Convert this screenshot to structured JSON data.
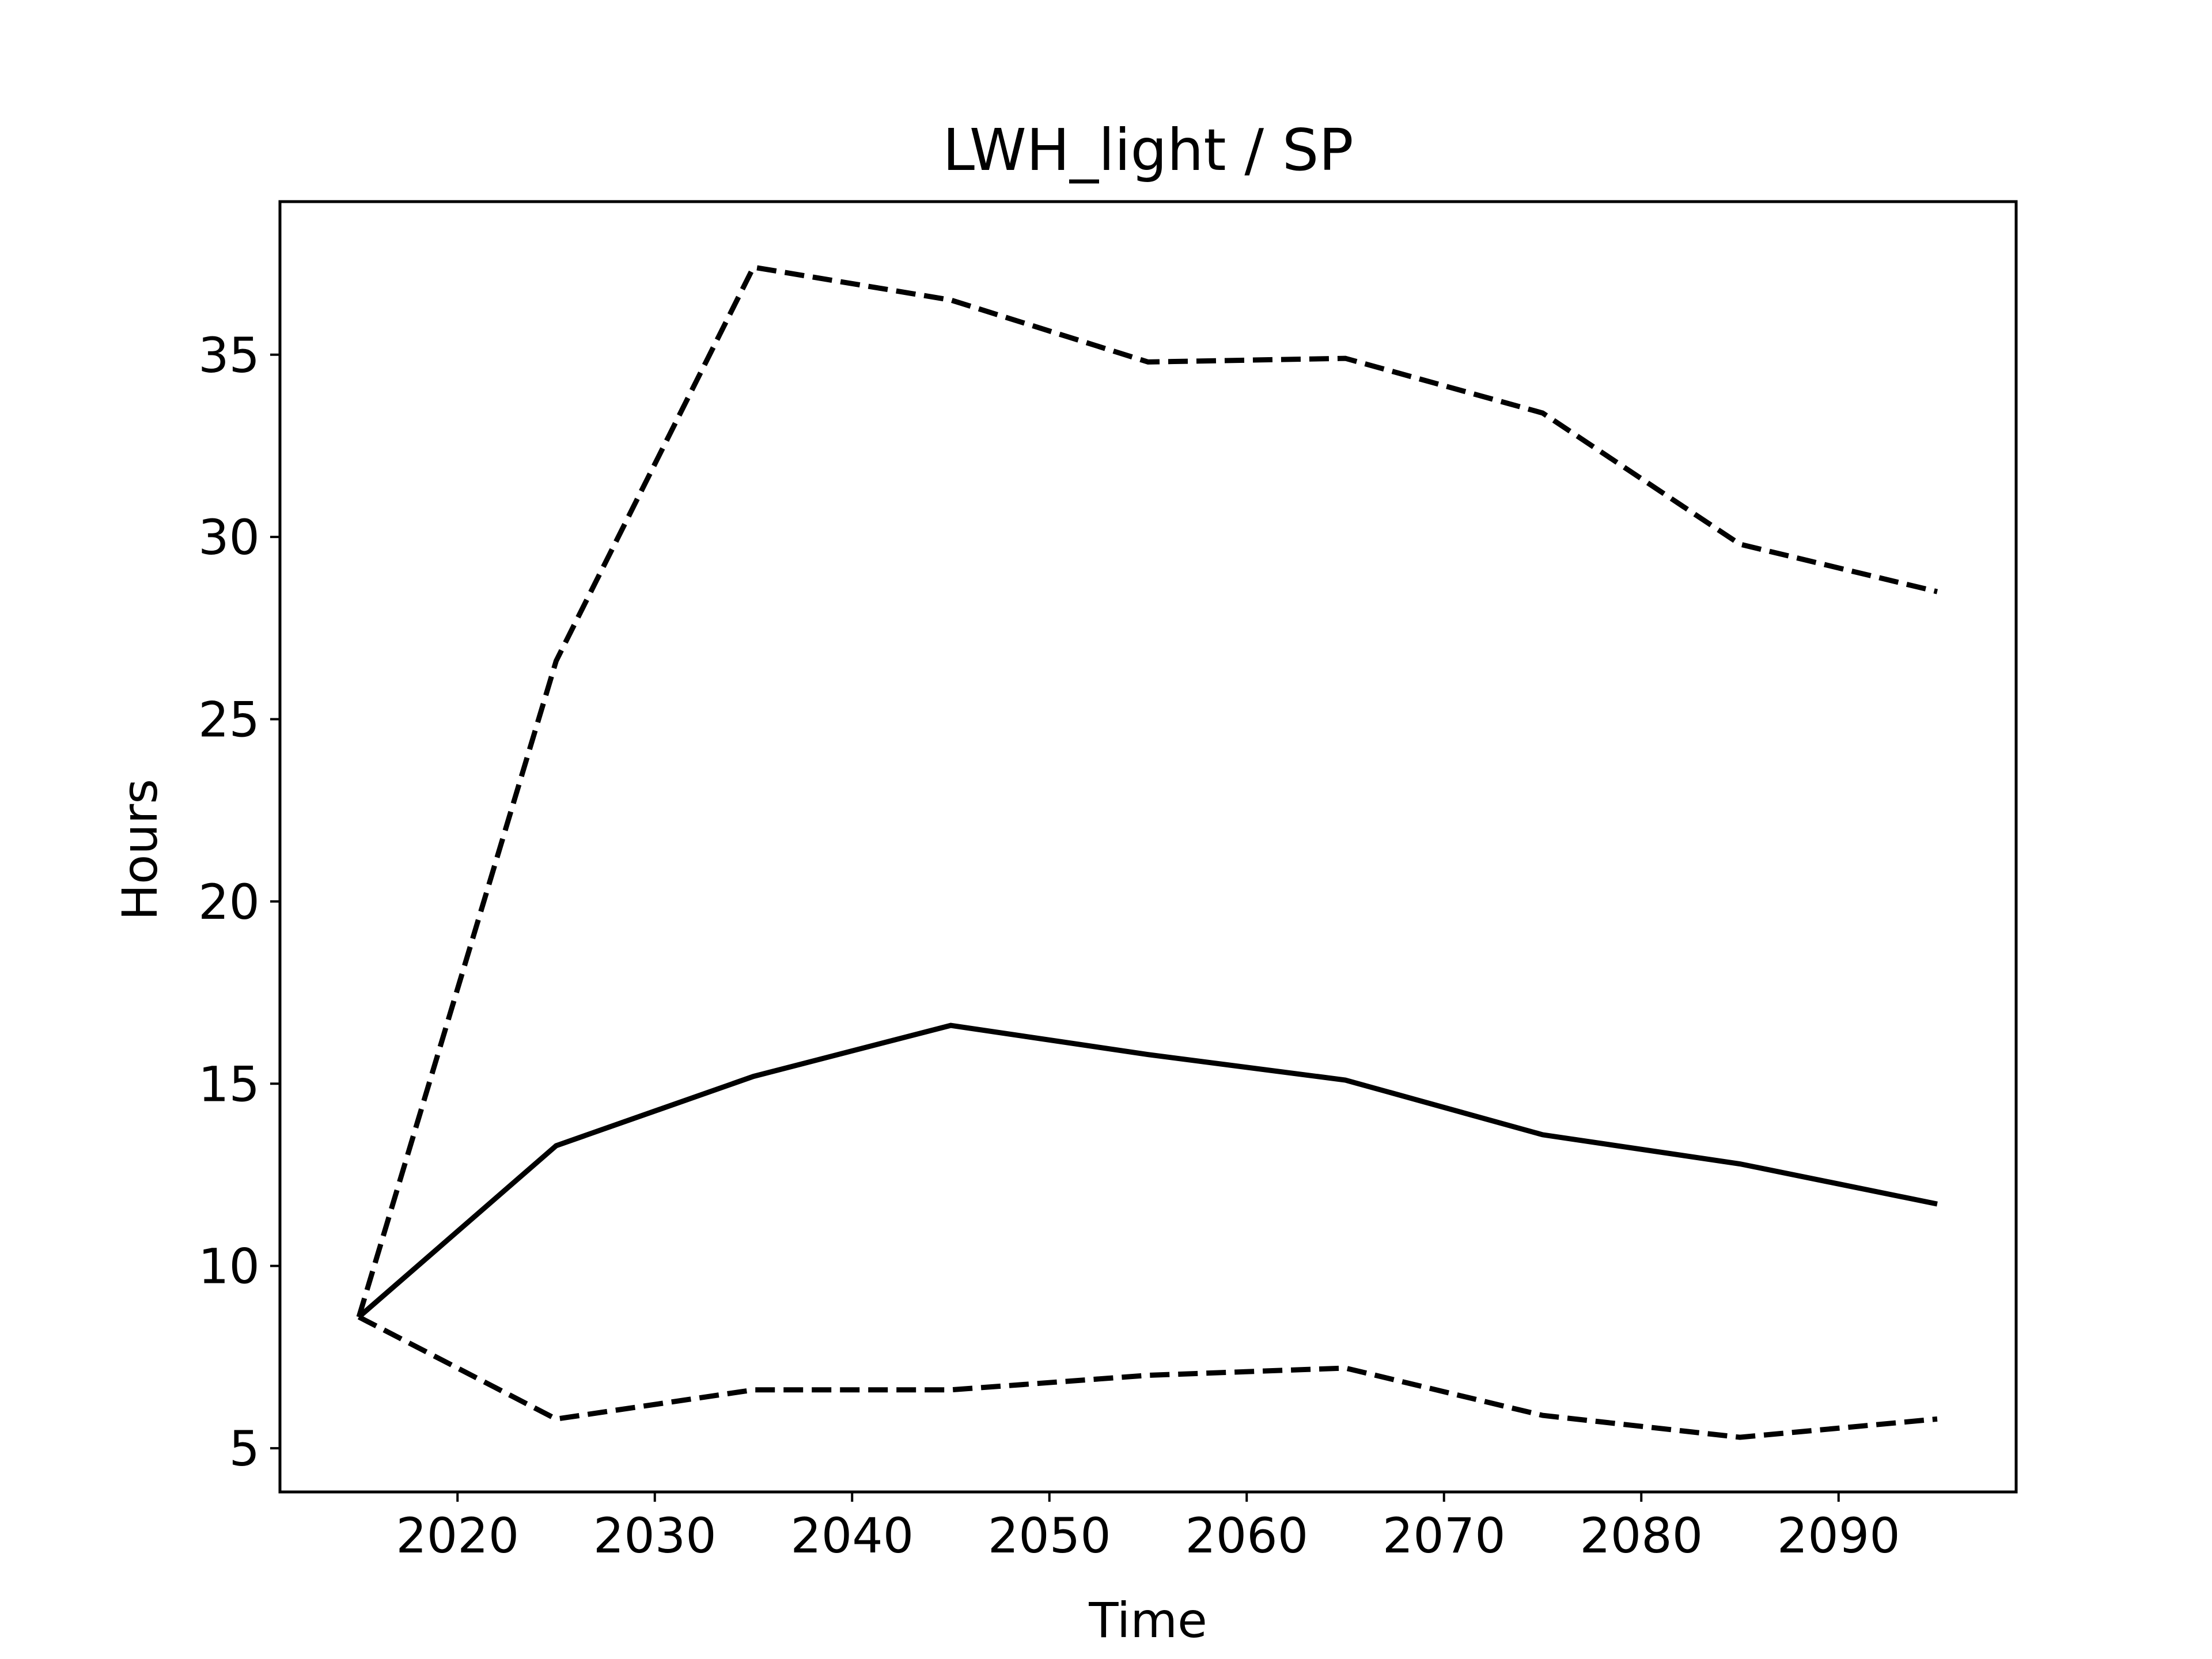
{
  "chart_data": {
    "type": "line",
    "title": "LWH_light / SP",
    "xlabel": "Time",
    "ylabel": "Hours",
    "xlim": [
      2011,
      2099
    ],
    "ylim": [
      3.8,
      39.2
    ],
    "xticks": [
      2020,
      2030,
      2040,
      2050,
      2060,
      2070,
      2080,
      2090
    ],
    "yticks": [
      5,
      10,
      15,
      20,
      25,
      30,
      35
    ],
    "grid": false,
    "legend": "none",
    "x": [
      2015,
      2025,
      2035,
      2045,
      2055,
      2065,
      2075,
      2085,
      2095
    ],
    "series": [
      {
        "style": "dashed",
        "color": "#000000",
        "values": [
          8.6,
          26.6,
          37.4,
          36.5,
          34.8,
          34.9,
          33.4,
          29.8,
          28.5
        ]
      },
      {
        "style": "solid",
        "color": "#000000",
        "values": [
          8.6,
          13.3,
          15.2,
          16.6,
          15.8,
          15.1,
          13.6,
          12.8,
          11.7
        ]
      },
      {
        "style": "dashed",
        "color": "#000000",
        "values": [
          8.6,
          5.8,
          6.6,
          6.6,
          7.0,
          7.2,
          5.9,
          5.3,
          5.8
        ]
      }
    ]
  }
}
